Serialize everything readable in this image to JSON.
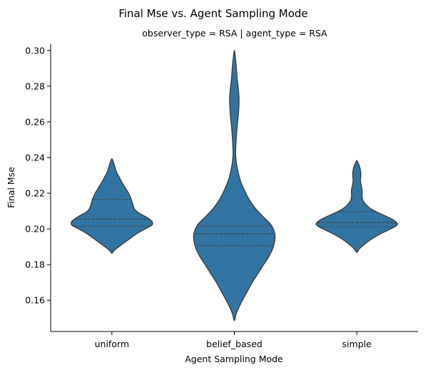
{
  "chart_data": {
    "type": "violin",
    "title": "Final Mse vs. Agent Sampling Mode",
    "subtitle": "observer_type = RSA | agent_type = RSA",
    "xlabel": "Agent Sampling Mode",
    "ylabel": "Final Mse",
    "ylim": [
      0.1425,
      0.3035
    ],
    "yticks": [
      0.16,
      0.18,
      0.2,
      0.22,
      0.24,
      0.26,
      0.28,
      0.3
    ],
    "ytick_labels": [
      "0.16",
      "0.18",
      "0.20",
      "0.22",
      "0.24",
      "0.26",
      "0.28",
      "0.30"
    ],
    "categories": [
      "uniform",
      "belief_based",
      "simple"
    ],
    "inner": "quartile",
    "color": "#3274a1",
    "edge_color": "#3d3d3d",
    "violins": [
      {
        "category": "uniform",
        "min": 0.1865,
        "max": 0.2392,
        "quartiles": [
          0.2015,
          0.2056,
          0.2166
        ],
        "profile": [
          [
            0.1865,
            0.01
          ],
          [
            0.188,
            0.06
          ],
          [
            0.19,
            0.17
          ],
          [
            0.192,
            0.29
          ],
          [
            0.194,
            0.41
          ],
          [
            0.196,
            0.53
          ],
          [
            0.198,
            0.66
          ],
          [
            0.2,
            0.82
          ],
          [
            0.202,
            0.98
          ],
          [
            0.2035,
            1.0
          ],
          [
            0.205,
            0.95
          ],
          [
            0.207,
            0.82
          ],
          [
            0.209,
            0.66
          ],
          [
            0.211,
            0.56
          ],
          [
            0.214,
            0.51
          ],
          [
            0.217,
            0.47
          ],
          [
            0.22,
            0.41
          ],
          [
            0.223,
            0.33
          ],
          [
            0.226,
            0.25
          ],
          [
            0.229,
            0.18
          ],
          [
            0.232,
            0.11
          ],
          [
            0.235,
            0.07
          ],
          [
            0.238,
            0.03
          ],
          [
            0.2392,
            0.005
          ]
        ]
      },
      {
        "category": "belief_based",
        "min": 0.149,
        "max": 0.2996,
        "quartiles": [
          0.1907,
          0.1973,
          0.2016
        ],
        "profile": [
          [
            0.149,
            0.01
          ],
          [
            0.152,
            0.04
          ],
          [
            0.156,
            0.11
          ],
          [
            0.16,
            0.2
          ],
          [
            0.165,
            0.32
          ],
          [
            0.17,
            0.44
          ],
          [
            0.175,
            0.58
          ],
          [
            0.18,
            0.72
          ],
          [
            0.185,
            0.86
          ],
          [
            0.19,
            0.96
          ],
          [
            0.1965,
            1.0
          ],
          [
            0.202,
            0.91
          ],
          [
            0.207,
            0.7
          ],
          [
            0.212,
            0.5
          ],
          [
            0.217,
            0.35
          ],
          [
            0.222,
            0.24
          ],
          [
            0.227,
            0.15
          ],
          [
            0.232,
            0.09
          ],
          [
            0.237,
            0.05
          ],
          [
            0.242,
            0.03
          ],
          [
            0.248,
            0.04
          ],
          [
            0.255,
            0.06
          ],
          [
            0.262,
            0.09
          ],
          [
            0.268,
            0.11
          ],
          [
            0.273,
            0.115
          ],
          [
            0.278,
            0.1
          ],
          [
            0.284,
            0.07
          ],
          [
            0.29,
            0.05
          ],
          [
            0.295,
            0.03
          ],
          [
            0.2996,
            0.005
          ]
        ]
      },
      {
        "category": "simple",
        "min": 0.187,
        "max": 0.2382,
        "quartiles": [
          0.2012,
          0.2036,
          0.2097
        ],
        "profile": [
          [
            0.187,
            0.01
          ],
          [
            0.189,
            0.07
          ],
          [
            0.191,
            0.17
          ],
          [
            0.193,
            0.28
          ],
          [
            0.195,
            0.41
          ],
          [
            0.197,
            0.56
          ],
          [
            0.199,
            0.74
          ],
          [
            0.201,
            0.92
          ],
          [
            0.2025,
            1.0
          ],
          [
            0.204,
            0.96
          ],
          [
            0.206,
            0.82
          ],
          [
            0.208,
            0.63
          ],
          [
            0.21,
            0.44
          ],
          [
            0.212,
            0.3
          ],
          [
            0.214,
            0.21
          ],
          [
            0.216,
            0.15
          ],
          [
            0.218,
            0.13
          ],
          [
            0.22,
            0.13
          ],
          [
            0.222,
            0.13
          ],
          [
            0.224,
            0.11
          ],
          [
            0.227,
            0.09
          ],
          [
            0.23,
            0.1
          ],
          [
            0.233,
            0.09
          ],
          [
            0.236,
            0.05
          ],
          [
            0.2382,
            0.005
          ]
        ]
      }
    ]
  }
}
